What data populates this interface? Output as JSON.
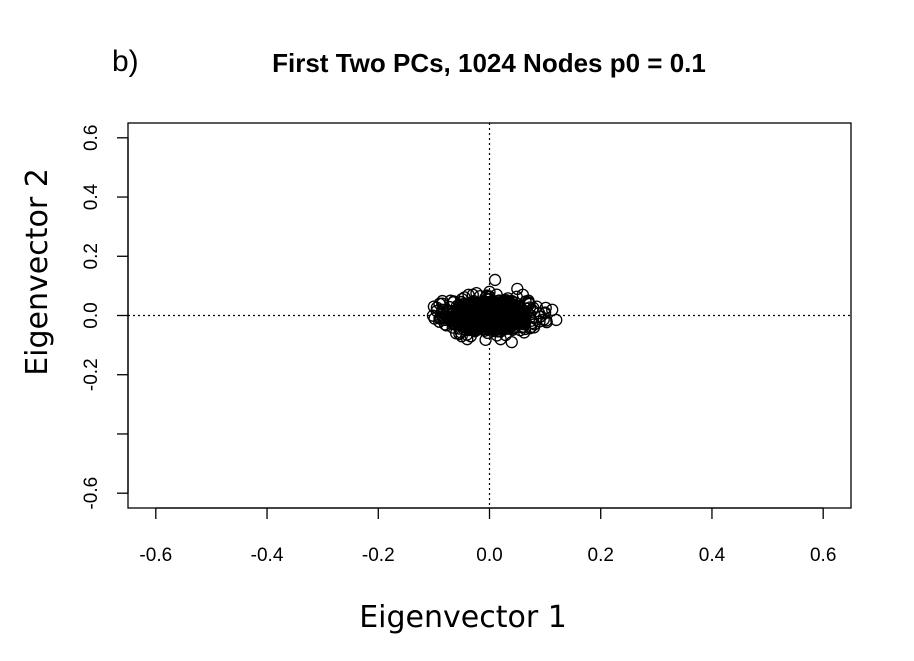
{
  "chart_data": {
    "type": "scatter",
    "panel_label": "b)",
    "title": "First Two PCs, 1024 Nodes p0 = 0.1",
    "xlabel": "Eigenvector 1",
    "ylabel": "Eigenvector 2",
    "xlim": [
      -0.65,
      0.65
    ],
    "ylim": [
      -0.65,
      0.65
    ],
    "x_ticks": [
      -0.6,
      -0.4,
      -0.2,
      0.0,
      0.2,
      0.4,
      0.6
    ],
    "x_tick_labels": [
      "-0.6",
      "-0.4",
      "-0.2",
      "0.0",
      "0.2",
      "0.4",
      "0.6"
    ],
    "y_ticks": [
      -0.6,
      -0.4,
      -0.2,
      0.0,
      0.2,
      0.4,
      0.6
    ],
    "y_tick_labels": [
      "-0.6",
      "",
      "-0.2",
      "0.0",
      "0.2",
      "0.4",
      "0.6"
    ],
    "reference_lines": {
      "x": 0,
      "y": 0,
      "style": "dotted"
    },
    "marker": "open-circle",
    "cluster": {
      "n": 1024,
      "x_sd": 0.035,
      "y_sd": 0.025
    },
    "points": [
      {
        "x": -0.1,
        "y": 0.03
      },
      {
        "x": -0.095,
        "y": 0.015
      },
      {
        "x": -0.09,
        "y": -0.01
      },
      {
        "x": -0.085,
        "y": 0.04
      },
      {
        "x": -0.08,
        "y": -0.03
      },
      {
        "x": -0.07,
        "y": 0.05
      },
      {
        "x": -0.06,
        "y": -0.06
      },
      {
        "x": -0.05,
        "y": -0.07
      },
      {
        "x": -0.04,
        "y": -0.08
      },
      {
        "x": -0.03,
        "y": 0.07
      },
      {
        "x": 0.0,
        "y": 0.08
      },
      {
        "x": 0.01,
        "y": 0.12
      },
      {
        "x": 0.02,
        "y": -0.08
      },
      {
        "x": 0.04,
        "y": -0.09
      },
      {
        "x": 0.05,
        "y": 0.09
      },
      {
        "x": 0.06,
        "y": 0.07
      },
      {
        "x": 0.07,
        "y": 0.05
      },
      {
        "x": 0.08,
        "y": -0.04
      },
      {
        "x": 0.085,
        "y": 0.03
      },
      {
        "x": 0.09,
        "y": -0.02
      },
      {
        "x": 0.1,
        "y": 0.01
      },
      {
        "x": 0.12,
        "y": -0.015
      }
    ]
  }
}
